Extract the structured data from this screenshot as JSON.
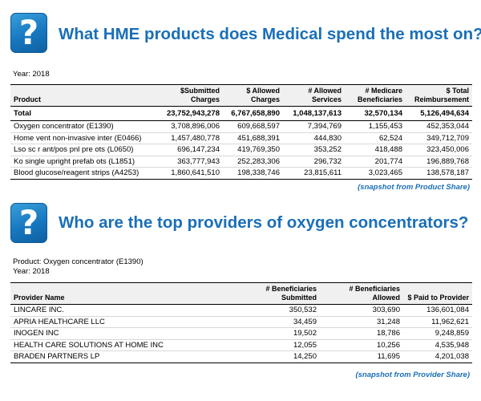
{
  "section1": {
    "icon": "question-mark-icon",
    "glyph": "?",
    "title": "What HME products does Medical spend the most on?",
    "year": "Year: 2018",
    "headers": [
      "Product",
      "$Submitted Charges",
      "$ Allowed Charges",
      "# Allowed Services",
      "# Medicare Beneficiaries",
      "$ Total Reimbursement"
    ],
    "total": [
      "Total",
      "23,752,943,278",
      "6,767,658,890",
      "1,048,137,613",
      "32,570,134",
      "5,126,494,634"
    ],
    "rows": [
      [
        "Oxygen concentrator (E1390)",
        "3,708,896,006",
        "609,668,597",
        "7,394,769",
        "1,155,453",
        "452,353,044"
      ],
      [
        "Home vent non-invasive inter (E0466)",
        "1,457,480,778",
        "451,688,391",
        "444,830",
        "62,524",
        "349,712,709"
      ],
      [
        "Lso sc r ant/pos pnl pre ots (L0650)",
        "696,147,234",
        "419,769,350",
        "353,252",
        "418,488",
        "323,450,006"
      ],
      [
        "Ko single upright prefab ots (L1851)",
        "363,777,943",
        "252,283,306",
        "296,732",
        "201,774",
        "196,889,768"
      ],
      [
        "Blood glucose/reagent strips (A4253)",
        "1,860,641,510",
        "198,338,746",
        "23,815,611",
        "3,023,465",
        "138,578,187"
      ]
    ],
    "snapshot": "(snapshot from Product Share)"
  },
  "section2": {
    "icon": "question-mark-icon",
    "glyph": "?",
    "title": "Who are the top providers of oxygen concentrators?",
    "product": "Product: Oxygen concentrator (E1390)",
    "year": "Year: 2018",
    "headers": [
      "Provider Name",
      "# Beneficiaries Submitted",
      "# Beneficiaries Allowed",
      "$ Paid to Provider"
    ],
    "rows": [
      [
        "LINCARE INC.",
        "350,532",
        "303,690",
        "136,601,084"
      ],
      [
        "APRIA HEALTHCARE LLC",
        "34,459",
        "31,248",
        "11,962,621"
      ],
      [
        "INOGEN INC",
        "19,502",
        "18,786",
        "9,248,859"
      ],
      [
        "HEALTH CARE SOLUTIONS AT HOME INC",
        "12,055",
        "10,256",
        "4,535,948"
      ],
      [
        "BRADEN PARTNERS LP",
        "14,250",
        "11,695",
        "4,201,038"
      ]
    ],
    "snapshot": "(snapshot from Provider Share)"
  }
}
